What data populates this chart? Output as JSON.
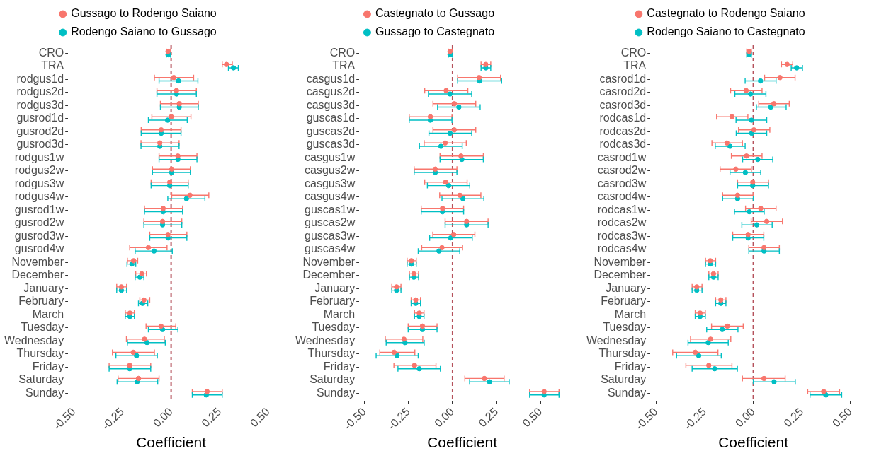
{
  "chart_data": [
    {
      "type": "scatter",
      "orientation": "horizontal",
      "xlabel": "Coefficient",
      "legend": "top",
      "marker": "circle",
      "grid": false,
      "categories": [
        "CRO",
        "TRA",
        "rodgus1d",
        "rodgus2d",
        "rodgus3d",
        "gusrod1d",
        "gusrod2d",
        "gusrod3d",
        "rodgus1w",
        "rodgus2w",
        "rodgus3w",
        "rodgus4w",
        "gusrod1w",
        "gusrod2w",
        "gusrod3w",
        "gusrod4w",
        "November",
        "December",
        "January",
        "February",
        "March",
        "Tuesday",
        "Wednesday",
        "Thursday",
        "Friday",
        "Saturday",
        "Sunday"
      ],
      "xlim": [
        -0.53,
        0.53
      ],
      "xticks": [
        {
          "value": -0.5,
          "label": "-0.50"
        },
        {
          "value": -0.25,
          "label": "-0.25"
        },
        {
          "value": 0,
          "label": "0.00"
        },
        {
          "value": 0.25,
          "label": "0.25"
        },
        {
          "value": 0.5,
          "label": "0.50"
        }
      ],
      "ref_lines": [
        {
          "axis": "x",
          "value": 0,
          "color": "#b5525c",
          "line_style": "dashed"
        }
      ],
      "series": [
        {
          "name": "Gussago to Rodengo Saiano",
          "color": "#f8766d",
          "values": [
            -0.016,
            0.285,
            0.014,
            0.028,
            0.042,
            0.001,
            -0.051,
            -0.058,
            0.035,
            0.003,
            -0.007,
            0.097,
            -0.041,
            -0.044,
            -0.016,
            -0.117,
            -0.193,
            -0.151,
            -0.256,
            -0.14,
            -0.212,
            -0.052,
            -0.137,
            -0.195,
            -0.213,
            -0.168,
            0.185
          ],
          "errors": [
            [
              -0.025,
              -0.003
            ],
            [
              0.263,
              0.315
            ],
            [
              -0.086,
              0.116
            ],
            [
              -0.073,
              0.13
            ],
            [
              -0.055,
              0.14
            ],
            [
              -0.099,
              0.102
            ],
            [
              -0.154,
              0.051
            ],
            [
              -0.155,
              0.041
            ],
            [
              -0.062,
              0.133
            ],
            [
              -0.096,
              0.099
            ],
            [
              -0.103,
              0.088
            ],
            [
              0.003,
              0.194
            ],
            [
              -0.137,
              0.059
            ],
            [
              -0.14,
              0.055
            ],
            [
              -0.11,
              0.081
            ],
            [
              -0.213,
              -0.021
            ],
            [
              -0.225,
              -0.172
            ],
            [
              -0.182,
              -0.127
            ],
            [
              -0.28,
              -0.229
            ],
            [
              -0.161,
              -0.11
            ],
            [
              -0.236,
              -0.189
            ],
            [
              -0.129,
              0.024
            ],
            [
              -0.23,
              -0.035
            ],
            [
              -0.302,
              -0.086
            ],
            [
              -0.319,
              -0.105
            ],
            [
              -0.273,
              -0.062
            ],
            [
              0.109,
              0.263
            ]
          ]
        },
        {
          "name": "Rodengo Saiano to Gussago",
          "color": "#00bfc4",
          "values": [
            -0.016,
            0.321,
            0.038,
            0.028,
            0.042,
            -0.018,
            -0.051,
            -0.058,
            0.035,
            0.003,
            -0.007,
            0.079,
            -0.041,
            -0.044,
            -0.016,
            -0.088,
            -0.202,
            -0.161,
            -0.256,
            -0.147,
            -0.212,
            -0.044,
            -0.124,
            -0.178,
            -0.213,
            -0.175,
            0.181
          ],
          "errors": [
            [
              -0.025,
              -0.003
            ],
            [
              0.295,
              0.346
            ],
            [
              -0.062,
              0.138
            ],
            [
              -0.073,
              0.13
            ],
            [
              -0.055,
              0.14
            ],
            [
              -0.117,
              0.083
            ],
            [
              -0.154,
              0.051
            ],
            [
              -0.155,
              0.041
            ],
            [
              -0.062,
              0.133
            ],
            [
              -0.096,
              0.099
            ],
            [
              -0.103,
              0.088
            ],
            [
              -0.017,
              0.174
            ],
            [
              -0.137,
              0.059
            ],
            [
              -0.14,
              0.055
            ],
            [
              -0.11,
              0.081
            ],
            [
              -0.185,
              0.006
            ],
            [
              -0.227,
              -0.182
            ],
            [
              -0.185,
              -0.14
            ],
            [
              -0.28,
              -0.229
            ],
            [
              -0.168,
              -0.12
            ],
            [
              -0.236,
              -0.189
            ],
            [
              -0.117,
              0.035
            ],
            [
              -0.225,
              -0.03
            ],
            [
              -0.284,
              -0.071
            ],
            [
              -0.319,
              -0.105
            ],
            [
              -0.278,
              -0.069
            ],
            [
              0.109,
              0.263
            ]
          ]
        }
      ]
    },
    {
      "type": "scatter",
      "orientation": "horizontal",
      "xlabel": "Coefficient",
      "legend": "top",
      "marker": "circle",
      "grid": false,
      "categories": [
        "CRO",
        "TRA",
        "casgus1d",
        "casgus2d",
        "casgus3d",
        "guscas1d",
        "guscas2d",
        "guscas3d",
        "casgus1w",
        "casgus2w",
        "casgus3w",
        "casgus4w",
        "guscas1w",
        "guscas2w",
        "guscas3w",
        "guscas4w",
        "November",
        "December",
        "January",
        "February",
        "March",
        "Tuesday",
        "Wednesday",
        "Thursday",
        "Friday",
        "Saturday",
        "Sunday"
      ],
      "xlim": [
        -0.53,
        0.64
      ],
      "xticks": [
        {
          "value": -0.5,
          "label": "-0.50"
        },
        {
          "value": -0.25,
          "label": "-0.25"
        },
        {
          "value": 0,
          "label": "0.00"
        },
        {
          "value": 0.25,
          "label": "0.25"
        },
        {
          "value": 0.5,
          "label": "0.50"
        }
      ],
      "ref_lines": [
        {
          "axis": "x",
          "value": 0,
          "color": "#b5525c",
          "line_style": "dashed"
        }
      ],
      "series": [
        {
          "name": "Castegnato to Gussago",
          "color": "#f8766d",
          "values": [
            -0.014,
            0.189,
            0.151,
            -0.036,
            0.01,
            -0.126,
            0.01,
            -0.042,
            0.048,
            -0.098,
            -0.039,
            0.042,
            -0.057,
            0.08,
            0.007,
            -0.06,
            -0.234,
            -0.22,
            -0.318,
            -0.209,
            -0.189,
            -0.171,
            -0.276,
            -0.332,
            -0.216,
            0.181,
            0.52
          ],
          "errors": [
            [
              -0.024,
              -0.001
            ],
            [
              0.162,
              0.217
            ],
            [
              0.029,
              0.273
            ],
            [
              -0.158,
              0.087
            ],
            [
              -0.111,
              0.132
            ],
            [
              -0.246,
              -0.003
            ],
            [
              -0.111,
              0.132
            ],
            [
              -0.161,
              0.078
            ],
            [
              -0.071,
              0.175
            ],
            [
              -0.218,
              0.025
            ],
            [
              -0.158,
              0.083
            ],
            [
              -0.073,
              0.161
            ],
            [
              -0.178,
              0.063
            ],
            [
              -0.042,
              0.202
            ],
            [
              -0.112,
              0.127
            ],
            [
              -0.175,
              0.057
            ],
            [
              -0.258,
              -0.206
            ],
            [
              -0.245,
              -0.193
            ],
            [
              -0.345,
              -0.293
            ],
            [
              -0.235,
              -0.182
            ],
            [
              -0.216,
              -0.162
            ],
            [
              -0.252,
              -0.088
            ],
            [
              -0.382,
              -0.169
            ],
            [
              -0.413,
              -0.214
            ],
            [
              -0.333,
              -0.094
            ],
            [
              0.07,
              0.293
            ],
            [
              0.438,
              0.605
            ]
          ]
        },
        {
          "name": "Gussago to Castegnato",
          "color": "#00bfc4",
          "values": [
            -0.014,
            0.189,
            0.154,
            -0.014,
            0.036,
            -0.126,
            -0.014,
            -0.066,
            0.053,
            -0.098,
            -0.022,
            0.059,
            -0.057,
            0.08,
            -0.01,
            -0.077,
            -0.234,
            -0.22,
            -0.318,
            -0.209,
            -0.189,
            -0.171,
            -0.27,
            -0.315,
            -0.189,
            0.21,
            0.52
          ],
          "errors": [
            [
              -0.024,
              -0.001
            ],
            [
              0.162,
              0.217
            ],
            [
              0.029,
              0.279
            ],
            [
              -0.137,
              0.109
            ],
            [
              -0.085,
              0.157
            ],
            [
              -0.246,
              -0.003
            ],
            [
              -0.134,
              0.109
            ],
            [
              -0.188,
              0.055
            ],
            [
              -0.071,
              0.175
            ],
            [
              -0.218,
              0.025
            ],
            [
              -0.143,
              0.098
            ],
            [
              -0.06,
              0.178
            ],
            [
              -0.178,
              0.063
            ],
            [
              -0.042,
              0.202
            ],
            [
              -0.13,
              0.112
            ],
            [
              -0.195,
              0.041
            ],
            [
              -0.258,
              -0.206
            ],
            [
              -0.245,
              -0.193
            ],
            [
              -0.345,
              -0.293
            ],
            [
              -0.235,
              -0.182
            ],
            [
              -0.216,
              -0.162
            ],
            [
              -0.252,
              -0.088
            ],
            [
              -0.377,
              -0.161
            ],
            [
              -0.434,
              -0.195
            ],
            [
              -0.31,
              -0.069
            ],
            [
              0.097,
              0.322
            ],
            [
              0.438,
              0.605
            ]
          ]
        }
      ]
    },
    {
      "type": "scatter",
      "orientation": "horizontal",
      "xlabel": "Coefficient",
      "legend": "top",
      "marker": "circle",
      "grid": false,
      "categories": [
        "CRO",
        "TRA",
        "casrod1d",
        "casrod2d",
        "casrod3d",
        "rodcas1d",
        "rodcas2d",
        "rodcas3d",
        "casrod1w",
        "casrod2w",
        "casrod3w",
        "casrod4w",
        "rodcas1w",
        "rodcas2w",
        "rodcas3w",
        "rodcas4w",
        "November",
        "December",
        "January",
        "February",
        "March",
        "Tuesday",
        "Wednesday",
        "Thursday",
        "Friday",
        "Saturday",
        "Sunday"
      ],
      "xlim": [
        -0.53,
        0.53
      ],
      "xticks": [
        {
          "value": -0.5,
          "label": "-0.50"
        },
        {
          "value": -0.25,
          "label": "-0.25"
        },
        {
          "value": 0,
          "label": "0.00"
        },
        {
          "value": 0.25,
          "label": "0.25"
        },
        {
          "value": 0.5,
          "label": "0.50"
        }
      ],
      "ref_lines": [
        {
          "axis": "x",
          "value": 0,
          "color": "#b5525c",
          "line_style": "dashed"
        }
      ],
      "series": [
        {
          "name": "Castegnato to Rodengo Saiano",
          "color": "#f8766d",
          "values": [
            -0.021,
            0.174,
            0.137,
            -0.037,
            0.106,
            -0.11,
            0.003,
            -0.136,
            -0.035,
            -0.09,
            -0.003,
            -0.081,
            0.038,
            0.069,
            -0.027,
            0.055,
            -0.222,
            -0.205,
            -0.291,
            -0.167,
            -0.274,
            -0.134,
            -0.22,
            -0.299,
            -0.229,
            0.055,
            0.362
          ],
          "errors": [
            [
              -0.034,
              -0.01
            ],
            [
              0.145,
              0.203
            ],
            [
              0.058,
              0.215
            ],
            [
              -0.117,
              0.045
            ],
            [
              0.028,
              0.185
            ],
            [
              -0.189,
              -0.028
            ],
            [
              -0.076,
              0.085
            ],
            [
              -0.213,
              -0.056
            ],
            [
              -0.113,
              0.045
            ],
            [
              -0.171,
              -0.01
            ],
            [
              -0.081,
              0.078
            ],
            [
              -0.158,
              0.0
            ],
            [
              -0.04,
              0.117
            ],
            [
              -0.011,
              0.15
            ],
            [
              -0.106,
              0.054
            ],
            [
              -0.023,
              0.134
            ],
            [
              -0.246,
              -0.194
            ],
            [
              -0.229,
              -0.181
            ],
            [
              -0.315,
              -0.264
            ],
            [
              -0.194,
              -0.141
            ],
            [
              -0.299,
              -0.247
            ],
            [
              -0.215,
              -0.052
            ],
            [
              -0.323,
              -0.116
            ],
            [
              -0.415,
              -0.182
            ],
            [
              -0.347,
              -0.11
            ],
            [
              -0.056,
              0.164
            ],
            [
              0.28,
              0.444
            ]
          ]
        },
        {
          "name": "Rodengo Saiano to Castegnato",
          "color": "#00bfc4",
          "values": [
            -0.021,
            0.223,
            0.037,
            -0.014,
            0.09,
            -0.01,
            -0.008,
            -0.12,
            0.023,
            -0.041,
            -0.003,
            -0.081,
            -0.021,
            0.018,
            -0.027,
            0.055,
            -0.222,
            -0.205,
            -0.291,
            -0.167,
            -0.274,
            -0.16,
            -0.232,
            -0.281,
            -0.199,
            0.107,
            0.373
          ],
          "errors": [
            [
              -0.034,
              -0.01
            ],
            [
              0.195,
              0.253
            ],
            [
              -0.042,
              0.117
            ],
            [
              -0.095,
              0.065
            ],
            [
              0.016,
              0.169
            ],
            [
              -0.089,
              0.069
            ],
            [
              -0.088,
              0.069
            ],
            [
              -0.196,
              -0.042
            ],
            [
              -0.055,
              0.1
            ],
            [
              -0.12,
              0.038
            ],
            [
              -0.081,
              0.078
            ],
            [
              -0.158,
              0.0
            ],
            [
              -0.097,
              0.056
            ],
            [
              -0.059,
              0.097
            ],
            [
              -0.106,
              0.054
            ],
            [
              -0.023,
              0.134
            ],
            [
              -0.246,
              -0.194
            ],
            [
              -0.229,
              -0.181
            ],
            [
              -0.315,
              -0.264
            ],
            [
              -0.194,
              -0.141
            ],
            [
              -0.299,
              -0.247
            ],
            [
              -0.24,
              -0.079
            ],
            [
              -0.336,
              -0.129
            ],
            [
              -0.395,
              -0.165
            ],
            [
              -0.315,
              -0.082
            ],
            [
              0.0,
              0.216
            ],
            [
              0.292,
              0.455
            ]
          ]
        }
      ]
    }
  ]
}
